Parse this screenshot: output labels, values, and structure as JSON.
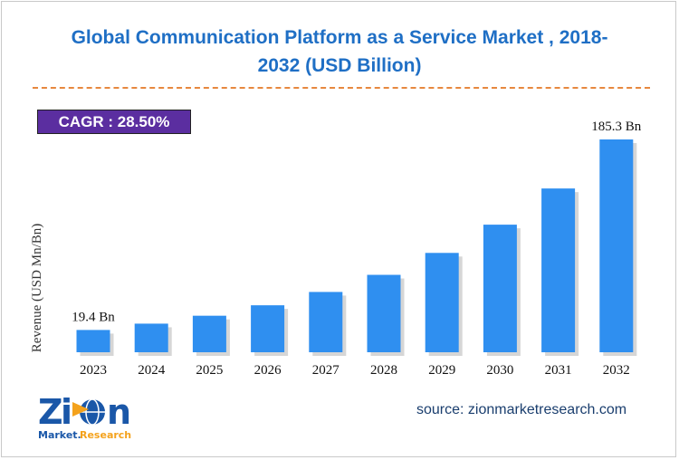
{
  "title_line1": "Global Communication Platform as a Service Market , 2018-",
  "title_line2": "2032 (USD Billion)",
  "cagr_label": "CAGR :  28.50%",
  "source": "source: zionmarketresearch.com",
  "logo": {
    "text": "Zion",
    "subtext": "Market.Research"
  },
  "colors": {
    "bar": "#2f8ff0",
    "bar_shadow": "#b5b5b5",
    "title": "#1f6fc5",
    "cagr_bg": "#5b2ea0",
    "divider": "#e7883f"
  },
  "chart_data": {
    "type": "bar",
    "title": "Global Communication Platform as a Service Market , 2018-2032 (USD Billion)",
    "xlabel": "",
    "ylabel": "Revenue (USD Mn/Bn)",
    "categories": [
      "2023",
      "2024",
      "2025",
      "2026",
      "2027",
      "2028",
      "2029",
      "2030",
      "2031",
      "2032"
    ],
    "values": [
      19.4,
      24.9,
      31.8,
      40.9,
      52.5,
      67.4,
      86.5,
      111.1,
      142.6,
      185.3
    ],
    "data_labels": {
      "2023": "19.4 Bn",
      "2032": "185.3 Bn"
    },
    "ylim": [
      0,
      185.3
    ],
    "grid": false,
    "legend": "none"
  }
}
